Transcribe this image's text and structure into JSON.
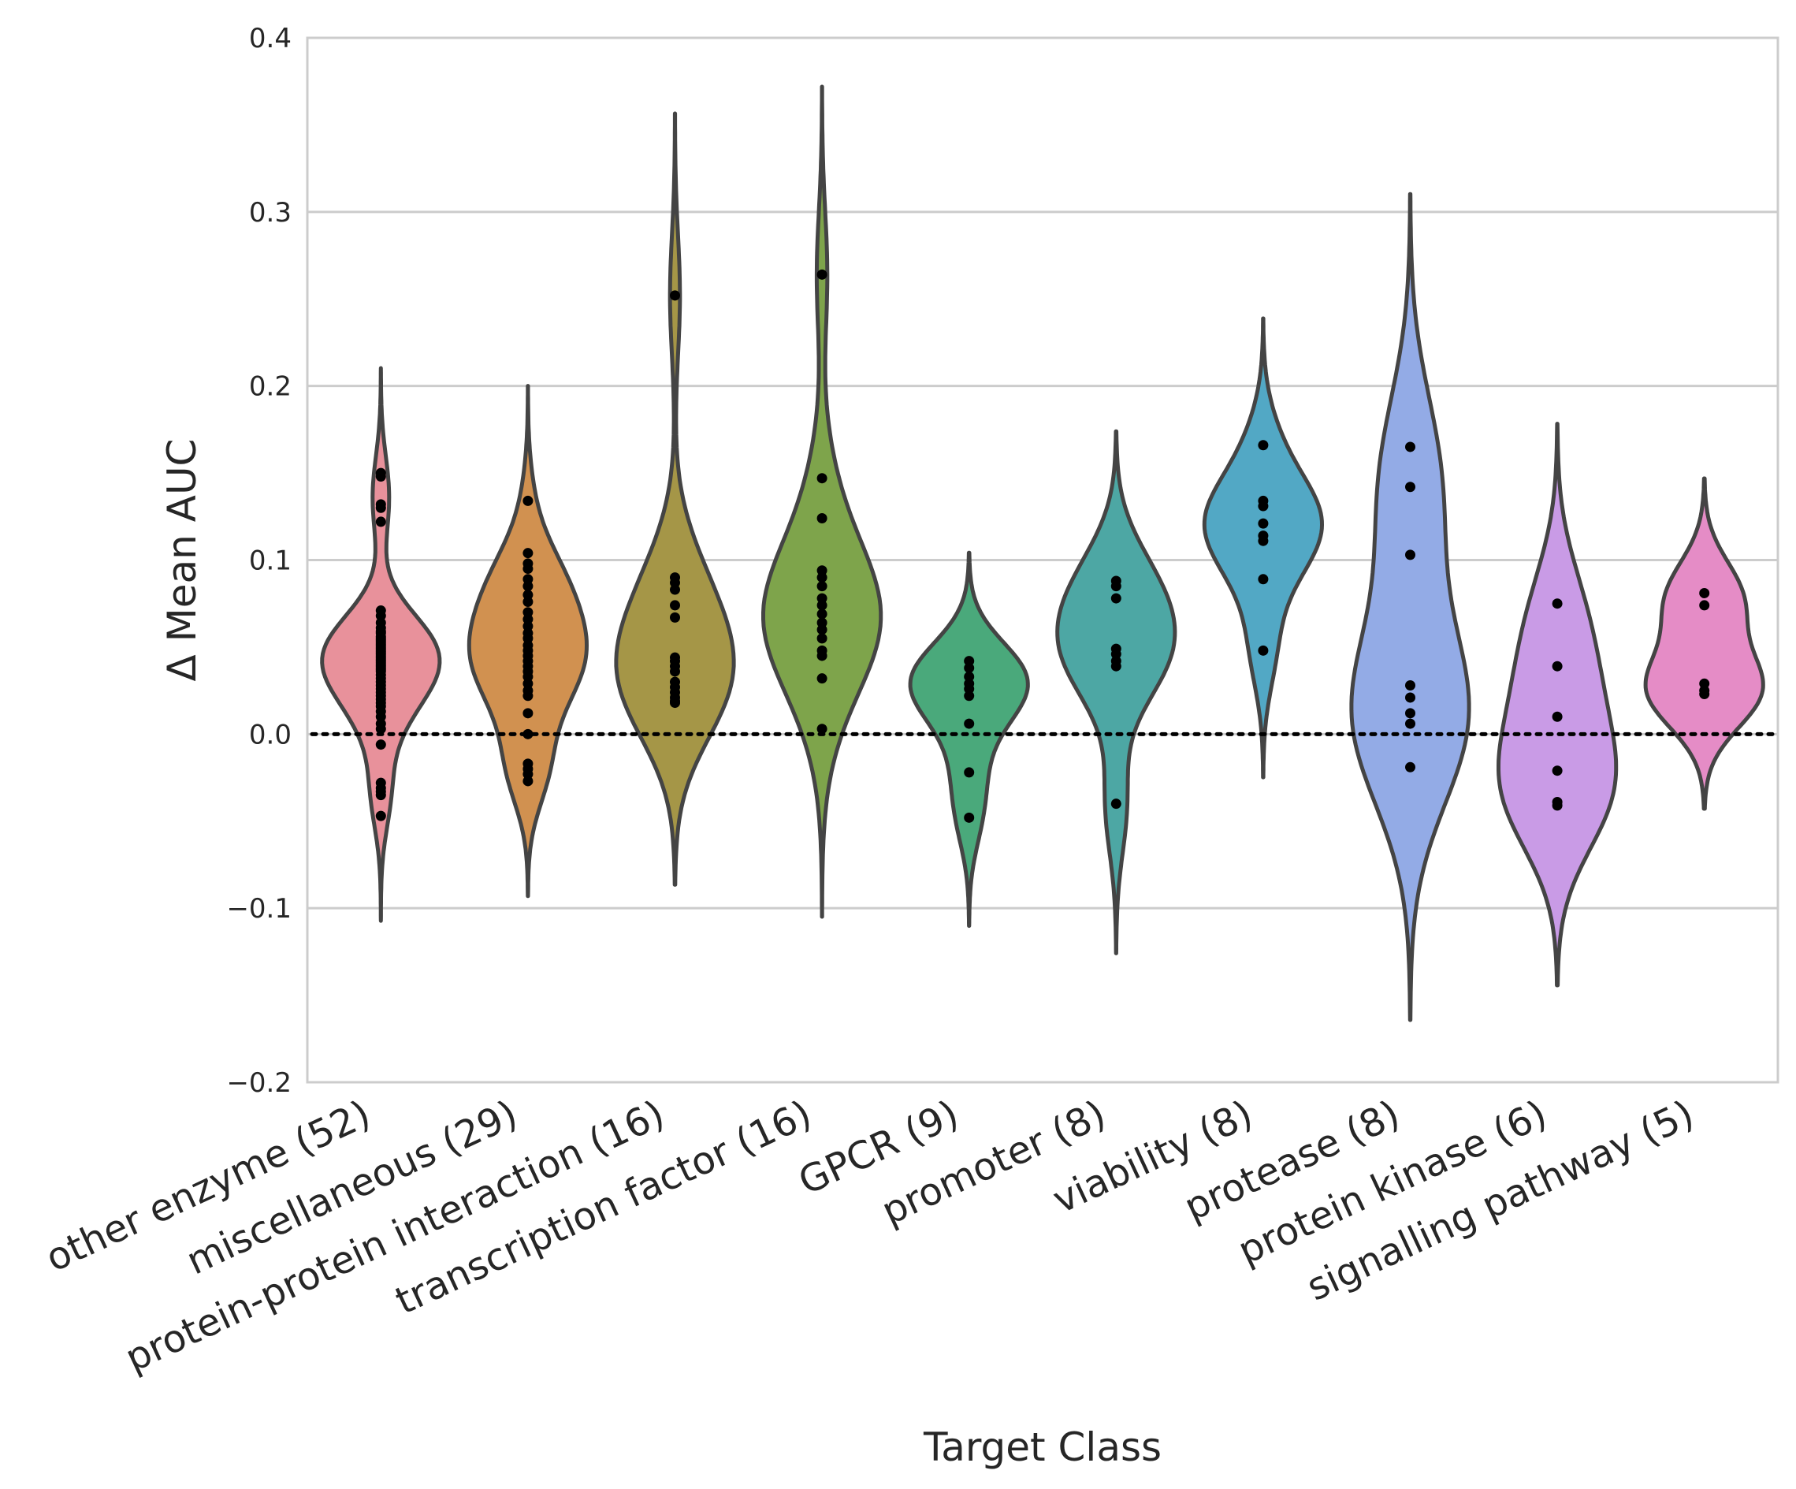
{
  "chart_data": {
    "type": "violin",
    "title": "",
    "xlabel": "Target Class",
    "ylabel": "Δ Mean AUC",
    "ylim": [
      -0.2,
      0.4
    ],
    "yticks": [
      -0.2,
      -0.1,
      0.0,
      0.1,
      0.2,
      0.3,
      0.4
    ],
    "ytick_labels": [
      "−0.2",
      "−0.1",
      "0.0",
      "0.1",
      "0.2",
      "0.3",
      "0.4"
    ],
    "reference_line": {
      "y": 0.0,
      "style": "dotted"
    },
    "grid": true,
    "legend": "none",
    "categories": [
      {
        "label": "other enzyme (52)",
        "color": "#e8919b",
        "points": [
          0.15,
          0.148,
          0.132,
          0.13,
          0.122,
          0.071,
          0.068,
          0.064,
          0.061,
          0.059,
          0.058,
          0.056,
          0.055,
          0.054,
          0.053,
          0.052,
          0.051,
          0.05,
          0.049,
          0.048,
          0.047,
          0.046,
          0.045,
          0.044,
          0.043,
          0.042,
          0.041,
          0.04,
          0.039,
          0.038,
          0.037,
          0.036,
          0.034,
          0.032,
          0.03,
          0.028,
          0.026,
          0.024,
          0.022,
          0.02,
          0.018,
          0.016,
          0.013,
          0.01,
          0.006,
          0.003,
          -0.006,
          -0.028,
          -0.031,
          -0.033,
          -0.035,
          -0.047
        ]
      },
      {
        "label": "miscellaneous (29)",
        "color": "#d19150",
        "points": [
          0.134,
          0.104,
          0.098,
          0.095,
          0.089,
          0.085,
          0.08,
          0.076,
          0.07,
          0.066,
          0.062,
          0.058,
          0.055,
          0.051,
          0.048,
          0.045,
          0.042,
          0.039,
          0.036,
          0.033,
          0.029,
          0.025,
          0.022,
          0.012,
          0.0,
          -0.017,
          -0.02,
          -0.023,
          -0.027
        ]
      },
      {
        "label": "protein-protein interaction (16)",
        "color": "#a59647",
        "points": [
          0.252,
          0.09,
          0.087,
          0.083,
          0.074,
          0.067,
          0.044,
          0.042,
          0.039,
          0.036,
          0.03,
          0.027,
          0.024,
          0.021,
          0.019,
          0.018
        ]
      },
      {
        "label": "transcription factor (16)",
        "color": "#7ea44b",
        "points": [
          0.264,
          0.147,
          0.124,
          0.094,
          0.09,
          0.085,
          0.078,
          0.074,
          0.069,
          0.064,
          0.06,
          0.055,
          0.048,
          0.045,
          0.032,
          0.003
        ]
      },
      {
        "label": "GPCR (9)",
        "color": "#4aa97b",
        "points": [
          0.042,
          0.038,
          0.033,
          0.029,
          0.026,
          0.022,
          0.006,
          -0.022,
          -0.048
        ]
      },
      {
        "label": "promoter (8)",
        "color": "#4da7a4",
        "points": [
          0.088,
          0.085,
          0.078,
          0.049,
          0.046,
          0.042,
          0.039,
          -0.04
        ]
      },
      {
        "label": "viability (8)",
        "color": "#52a8c5",
        "points": [
          0.166,
          0.134,
          0.131,
          0.121,
          0.114,
          0.111,
          0.089,
          0.048
        ]
      },
      {
        "label": "protease (8)",
        "color": "#93abe6",
        "points": [
          0.165,
          0.142,
          0.103,
          0.028,
          0.021,
          0.012,
          0.006,
          -0.019
        ]
      },
      {
        "label": "protein kinase (6)",
        "color": "#c99be6",
        "points": [
          0.075,
          0.039,
          0.01,
          -0.021,
          -0.039,
          -0.041
        ]
      },
      {
        "label": "signalling pathway (5)",
        "color": "#e58cc6",
        "points": [
          0.081,
          0.074,
          0.029,
          0.025,
          0.023
        ]
      }
    ]
  }
}
